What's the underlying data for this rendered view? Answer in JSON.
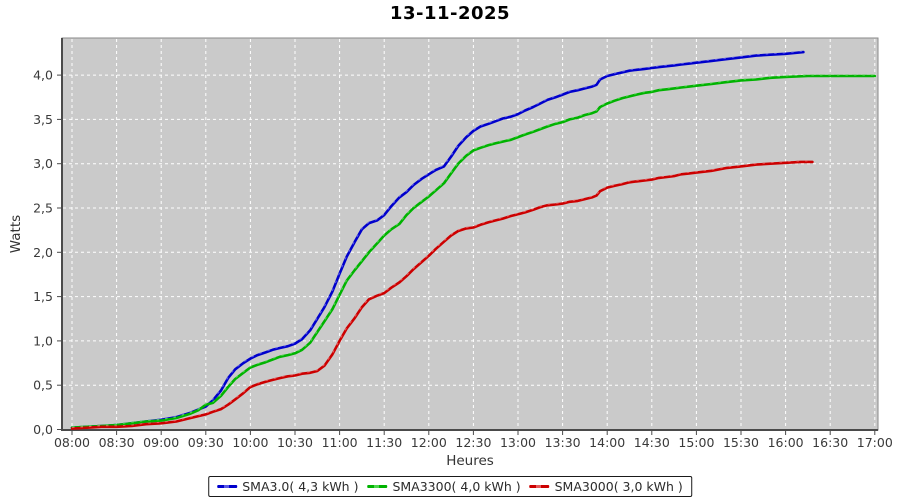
{
  "title": "13-11-2025",
  "colors": {
    "background": "#ffffff",
    "plot_bg": "#cacaca",
    "grid": "#ffffff",
    "axis_line": "#4a4a4a",
    "plot_outline": "#8a8a8a",
    "tick_text": "#3a3a3a",
    "axis_label_text": "#333333",
    "legend_border": "#1a1a1a",
    "series_blue": "#0000cc",
    "series_green": "#00b300",
    "series_red": "#cc0000"
  },
  "chart_data": {
    "type": "line",
    "title": "13-11-2025",
    "xlabel": "Heures",
    "ylabel": "Watts",
    "xlim": [
      7.89,
      17.04
    ],
    "ylim": [
      0,
      4.42
    ],
    "grid": "white dashed on gray plot background",
    "legend_position": "bottom-center",
    "x_ticks": [
      {
        "v": 8.0,
        "label": "08:00"
      },
      {
        "v": 8.5,
        "label": "08:30"
      },
      {
        "v": 9.0,
        "label": "09:00"
      },
      {
        "v": 9.5,
        "label": "09:30"
      },
      {
        "v": 10.0,
        "label": "10:00"
      },
      {
        "v": 10.5,
        "label": "10:30"
      },
      {
        "v": 11.0,
        "label": "11:00"
      },
      {
        "v": 11.5,
        "label": "11:30"
      },
      {
        "v": 12.0,
        "label": "12:00"
      },
      {
        "v": 12.5,
        "label": "12:30"
      },
      {
        "v": 13.0,
        "label": "13:00"
      },
      {
        "v": 13.5,
        "label": "13:30"
      },
      {
        "v": 14.0,
        "label": "14:00"
      },
      {
        "v": 14.5,
        "label": "14:30"
      },
      {
        "v": 15.0,
        "label": "15:00"
      },
      {
        "v": 15.5,
        "label": "15:30"
      },
      {
        "v": 16.0,
        "label": "16:00"
      },
      {
        "v": 16.5,
        "label": "16:30"
      },
      {
        "v": 17.0,
        "label": "17:00"
      }
    ],
    "y_ticks": [
      {
        "v": 0.0,
        "label": "0,0"
      },
      {
        "v": 0.5,
        "label": "0,5"
      },
      {
        "v": 1.0,
        "label": "1,0"
      },
      {
        "v": 1.5,
        "label": "1,5"
      },
      {
        "v": 2.0,
        "label": "2,0"
      },
      {
        "v": 2.5,
        "label": "2,5"
      },
      {
        "v": 3.0,
        "label": "3,0"
      },
      {
        "v": 3.5,
        "label": "3,5"
      },
      {
        "v": 4.0,
        "label": "4,0"
      }
    ],
    "series": [
      {
        "name": "SMA3.0( 4,3 kWh )",
        "color": "#0000cc",
        "marker_color": "#5a5ae6",
        "points": [
          [
            8.0,
            0.02
          ],
          [
            8.17,
            0.03
          ],
          [
            8.33,
            0.04
          ],
          [
            8.5,
            0.05
          ],
          [
            8.67,
            0.07
          ],
          [
            8.83,
            0.09
          ],
          [
            9.0,
            0.11
          ],
          [
            9.17,
            0.14
          ],
          [
            9.33,
            0.19
          ],
          [
            9.5,
            0.26
          ],
          [
            9.58,
            0.33
          ],
          [
            9.67,
            0.44
          ],
          [
            9.75,
            0.58
          ],
          [
            9.83,
            0.68
          ],
          [
            9.92,
            0.75
          ],
          [
            10.0,
            0.8
          ],
          [
            10.08,
            0.84
          ],
          [
            10.17,
            0.87
          ],
          [
            10.25,
            0.9
          ],
          [
            10.33,
            0.92
          ],
          [
            10.42,
            0.94
          ],
          [
            10.5,
            0.97
          ],
          [
            10.58,
            1.02
          ],
          [
            10.67,
            1.12
          ],
          [
            10.75,
            1.25
          ],
          [
            10.83,
            1.38
          ],
          [
            10.92,
            1.56
          ],
          [
            11.0,
            1.76
          ],
          [
            11.08,
            1.95
          ],
          [
            11.17,
            2.12
          ],
          [
            11.25,
            2.26
          ],
          [
            11.33,
            2.33
          ],
          [
            11.42,
            2.36
          ],
          [
            11.5,
            2.42
          ],
          [
            11.58,
            2.52
          ],
          [
            11.67,
            2.62
          ],
          [
            11.75,
            2.68
          ],
          [
            11.83,
            2.76
          ],
          [
            11.92,
            2.83
          ],
          [
            12.0,
            2.88
          ],
          [
            12.08,
            2.93
          ],
          [
            12.17,
            2.97
          ],
          [
            12.25,
            3.08
          ],
          [
            12.33,
            3.2
          ],
          [
            12.42,
            3.3
          ],
          [
            12.5,
            3.37
          ],
          [
            12.58,
            3.42
          ],
          [
            12.67,
            3.45
          ],
          [
            12.75,
            3.48
          ],
          [
            12.83,
            3.51
          ],
          [
            12.92,
            3.53
          ],
          [
            13.0,
            3.56
          ],
          [
            13.08,
            3.6
          ],
          [
            13.17,
            3.64
          ],
          [
            13.25,
            3.68
          ],
          [
            13.33,
            3.72
          ],
          [
            13.42,
            3.75
          ],
          [
            13.5,
            3.78
          ],
          [
            13.58,
            3.81
          ],
          [
            13.67,
            3.83
          ],
          [
            13.75,
            3.85
          ],
          [
            13.83,
            3.87
          ],
          [
            13.88,
            3.89
          ],
          [
            13.92,
            3.95
          ],
          [
            14.0,
            3.99
          ],
          [
            14.08,
            4.01
          ],
          [
            14.17,
            4.03
          ],
          [
            14.25,
            4.05
          ],
          [
            14.33,
            4.06
          ],
          [
            14.42,
            4.07
          ],
          [
            14.5,
            4.08
          ],
          [
            14.58,
            4.09
          ],
          [
            14.67,
            4.1
          ],
          [
            14.75,
            4.11
          ],
          [
            14.83,
            4.12
          ],
          [
            14.92,
            4.13
          ],
          [
            15.0,
            4.14
          ],
          [
            15.17,
            4.16
          ],
          [
            15.33,
            4.18
          ],
          [
            15.5,
            4.2
          ],
          [
            15.67,
            4.22
          ],
          [
            15.83,
            4.23
          ],
          [
            16.0,
            4.24
          ],
          [
            16.1,
            4.25
          ],
          [
            16.2,
            4.26
          ]
        ]
      },
      {
        "name": "SMA3300( 4,0 kWh )",
        "color": "#00b300",
        "marker_color": "#4ed64e",
        "points": [
          [
            8.0,
            0.02
          ],
          [
            8.17,
            0.03
          ],
          [
            8.33,
            0.04
          ],
          [
            8.5,
            0.05
          ],
          [
            8.67,
            0.07
          ],
          [
            8.83,
            0.09
          ],
          [
            9.0,
            0.1
          ],
          [
            9.17,
            0.13
          ],
          [
            9.33,
            0.18
          ],
          [
            9.42,
            0.22
          ],
          [
            9.5,
            0.28
          ],
          [
            9.58,
            0.3
          ],
          [
            9.67,
            0.38
          ],
          [
            9.75,
            0.48
          ],
          [
            9.83,
            0.57
          ],
          [
            9.92,
            0.64
          ],
          [
            10.0,
            0.7
          ],
          [
            10.08,
            0.73
          ],
          [
            10.17,
            0.76
          ],
          [
            10.25,
            0.79
          ],
          [
            10.33,
            0.82
          ],
          [
            10.42,
            0.84
          ],
          [
            10.5,
            0.86
          ],
          [
            10.58,
            0.9
          ],
          [
            10.67,
            0.98
          ],
          [
            10.75,
            1.1
          ],
          [
            10.83,
            1.22
          ],
          [
            10.92,
            1.36
          ],
          [
            11.0,
            1.52
          ],
          [
            11.08,
            1.68
          ],
          [
            11.17,
            1.8
          ],
          [
            11.25,
            1.9
          ],
          [
            11.33,
            2.0
          ],
          [
            11.42,
            2.1
          ],
          [
            11.5,
            2.19
          ],
          [
            11.58,
            2.26
          ],
          [
            11.67,
            2.32
          ],
          [
            11.75,
            2.42
          ],
          [
            11.83,
            2.5
          ],
          [
            11.92,
            2.57
          ],
          [
            12.0,
            2.63
          ],
          [
            12.08,
            2.7
          ],
          [
            12.17,
            2.78
          ],
          [
            12.25,
            2.89
          ],
          [
            12.33,
            3.0
          ],
          [
            12.42,
            3.09
          ],
          [
            12.5,
            3.15
          ],
          [
            12.58,
            3.18
          ],
          [
            12.67,
            3.21
          ],
          [
            12.75,
            3.23
          ],
          [
            12.83,
            3.25
          ],
          [
            12.92,
            3.27
          ],
          [
            13.0,
            3.3
          ],
          [
            13.08,
            3.33
          ],
          [
            13.17,
            3.36
          ],
          [
            13.25,
            3.39
          ],
          [
            13.33,
            3.42
          ],
          [
            13.42,
            3.45
          ],
          [
            13.5,
            3.47
          ],
          [
            13.58,
            3.5
          ],
          [
            13.67,
            3.52
          ],
          [
            13.75,
            3.55
          ],
          [
            13.83,
            3.57
          ],
          [
            13.88,
            3.59
          ],
          [
            13.92,
            3.64
          ],
          [
            14.0,
            3.68
          ],
          [
            14.08,
            3.71
          ],
          [
            14.17,
            3.74
          ],
          [
            14.25,
            3.76
          ],
          [
            14.33,
            3.78
          ],
          [
            14.42,
            3.8
          ],
          [
            14.5,
            3.81
          ],
          [
            14.58,
            3.83
          ],
          [
            14.67,
            3.84
          ],
          [
            14.75,
            3.85
          ],
          [
            14.83,
            3.86
          ],
          [
            14.92,
            3.87
          ],
          [
            15.0,
            3.88
          ],
          [
            15.17,
            3.9
          ],
          [
            15.33,
            3.92
          ],
          [
            15.5,
            3.94
          ],
          [
            15.67,
            3.95
          ],
          [
            15.83,
            3.97
          ],
          [
            16.0,
            3.98
          ],
          [
            16.25,
            3.99
          ],
          [
            16.5,
            3.99
          ],
          [
            16.75,
            3.99
          ],
          [
            17.0,
            3.99
          ]
        ]
      },
      {
        "name": "SMA3000( 3,0 kWh )",
        "color": "#cc0000",
        "marker_color": "#e65a5a",
        "points": [
          [
            8.0,
            0.01
          ],
          [
            8.17,
            0.02
          ],
          [
            8.33,
            0.03
          ],
          [
            8.5,
            0.03
          ],
          [
            8.67,
            0.04
          ],
          [
            8.83,
            0.06
          ],
          [
            9.0,
            0.07
          ],
          [
            9.17,
            0.09
          ],
          [
            9.33,
            0.13
          ],
          [
            9.5,
            0.17
          ],
          [
            9.58,
            0.2
          ],
          [
            9.67,
            0.23
          ],
          [
            9.75,
            0.28
          ],
          [
            9.83,
            0.34
          ],
          [
            9.92,
            0.41
          ],
          [
            10.0,
            0.48
          ],
          [
            10.08,
            0.51
          ],
          [
            10.17,
            0.54
          ],
          [
            10.25,
            0.56
          ],
          [
            10.33,
            0.58
          ],
          [
            10.42,
            0.6
          ],
          [
            10.5,
            0.61
          ],
          [
            10.58,
            0.63
          ],
          [
            10.67,
            0.64
          ],
          [
            10.75,
            0.66
          ],
          [
            10.83,
            0.72
          ],
          [
            10.92,
            0.85
          ],
          [
            11.0,
            1.0
          ],
          [
            11.08,
            1.14
          ],
          [
            11.17,
            1.26
          ],
          [
            11.25,
            1.38
          ],
          [
            11.33,
            1.47
          ],
          [
            11.42,
            1.51
          ],
          [
            11.5,
            1.54
          ],
          [
            11.58,
            1.6
          ],
          [
            11.67,
            1.66
          ],
          [
            11.75,
            1.73
          ],
          [
            11.83,
            1.81
          ],
          [
            11.92,
            1.89
          ],
          [
            12.0,
            1.96
          ],
          [
            12.08,
            2.04
          ],
          [
            12.17,
            2.12
          ],
          [
            12.25,
            2.19
          ],
          [
            12.33,
            2.24
          ],
          [
            12.42,
            2.27
          ],
          [
            12.5,
            2.28
          ],
          [
            12.58,
            2.31
          ],
          [
            12.67,
            2.34
          ],
          [
            12.75,
            2.36
          ],
          [
            12.83,
            2.38
          ],
          [
            12.92,
            2.41
          ],
          [
            13.0,
            2.43
          ],
          [
            13.08,
            2.45
          ],
          [
            13.17,
            2.48
          ],
          [
            13.25,
            2.51
          ],
          [
            13.33,
            2.53
          ],
          [
            13.42,
            2.54
          ],
          [
            13.5,
            2.55
          ],
          [
            13.58,
            2.57
          ],
          [
            13.67,
            2.58
          ],
          [
            13.75,
            2.6
          ],
          [
            13.83,
            2.62
          ],
          [
            13.88,
            2.64
          ],
          [
            13.92,
            2.69
          ],
          [
            14.0,
            2.73
          ],
          [
            14.08,
            2.75
          ],
          [
            14.17,
            2.77
          ],
          [
            14.25,
            2.79
          ],
          [
            14.33,
            2.8
          ],
          [
            14.42,
            2.81
          ],
          [
            14.5,
            2.82
          ],
          [
            14.58,
            2.84
          ],
          [
            14.67,
            2.85
          ],
          [
            14.75,
            2.86
          ],
          [
            14.83,
            2.88
          ],
          [
            14.92,
            2.89
          ],
          [
            15.0,
            2.9
          ],
          [
            15.17,
            2.92
          ],
          [
            15.33,
            2.95
          ],
          [
            15.5,
            2.97
          ],
          [
            15.67,
            2.99
          ],
          [
            15.83,
            3.0
          ],
          [
            16.0,
            3.01
          ],
          [
            16.17,
            3.02
          ],
          [
            16.3,
            3.02
          ]
        ]
      }
    ]
  }
}
